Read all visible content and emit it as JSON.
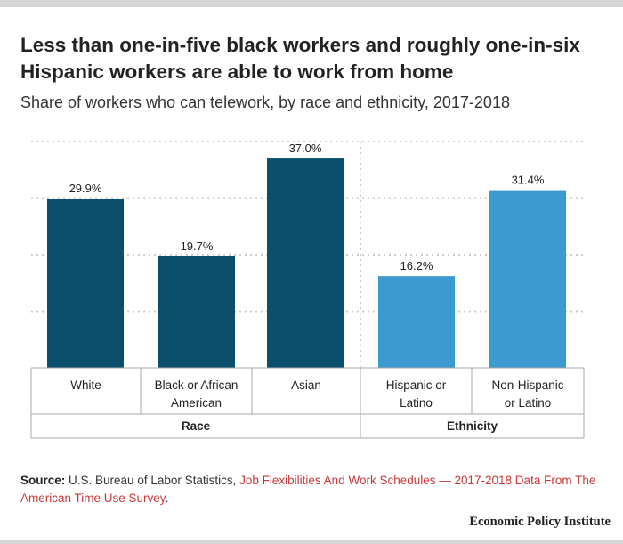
{
  "title": "Less than one-in-five black workers and roughly one-in-six Hispanic workers are able to work from home",
  "subtitle": "Share of workers who can telework, by race and ethnicity, 2017-2018",
  "source": {
    "label": "Source:",
    "text": "U.S. Bureau of Labor Statistics,",
    "link_text": "Job Flexibilities And Work Schedules — 2017-2018 Data From The American Time Use Survey",
    "end": "."
  },
  "brand": "Economic Policy Institute",
  "colors": {
    "race": "#0b4f6c",
    "ethnicity": "#3d9ad1",
    "grid": "#cccccc",
    "table_border": "#aaaaaa"
  },
  "chart_data": {
    "type": "bar",
    "title": "Less than one-in-five black workers and roughly one-in-six Hispanic workers are able to work from home",
    "subtitle": "Share of workers who can telework, by race and ethnicity, 2017-2018",
    "ylim": [
      0,
      40
    ],
    "yticks": [
      0,
      10,
      20,
      30,
      40
    ],
    "grid": true,
    "categories": [
      "White",
      "Black or African American",
      "Asian",
      "Hispanic or Latino",
      "Non-Hispanic or Latino"
    ],
    "category_lines": [
      [
        "White"
      ],
      [
        "Black or African",
        "American"
      ],
      [
        "Asian"
      ],
      [
        "Hispanic or",
        "Latino"
      ],
      [
        "Non-Hispanic",
        "or Latino"
      ]
    ],
    "values": [
      29.9,
      19.7,
      37.0,
      16.2,
      31.4
    ],
    "value_labels": [
      "29.9%",
      "19.7%",
      "37.0%",
      "16.2%",
      "31.4%"
    ],
    "groups": [
      {
        "name": "Race",
        "categories": [
          "White",
          "Black or African American",
          "Asian"
        ]
      },
      {
        "name": "Ethnicity",
        "categories": [
          "Hispanic or Latino",
          "Non-Hispanic or Latino"
        ]
      }
    ]
  }
}
